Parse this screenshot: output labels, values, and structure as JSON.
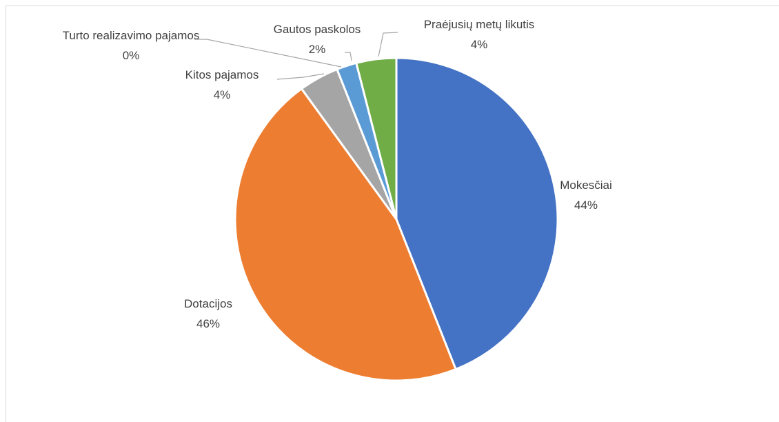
{
  "chart_data": {
    "type": "pie",
    "categories": [
      "Mokesčiai",
      "Dotacijos",
      "Kitos pajamos",
      "Turto realizavimo pajamos",
      "Gautos paskolos",
      "Praėjusių metų likutis"
    ],
    "values": [
      44,
      46,
      4,
      0,
      2,
      4
    ],
    "value_labels": [
      "44%",
      "46%",
      "4%",
      "0%",
      "2%",
      "4%"
    ],
    "colors": [
      "#4472c4",
      "#ed7d31",
      "#a5a5a5",
      "#ffc000",
      "#5b9bd5",
      "#70ad47"
    ]
  }
}
